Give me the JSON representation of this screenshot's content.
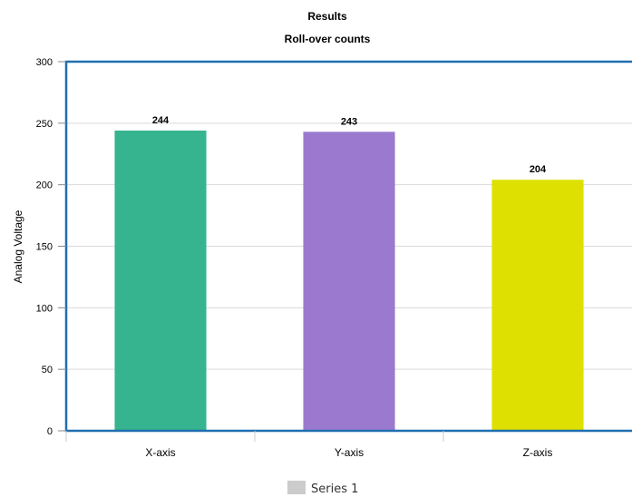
{
  "chart_data": {
    "type": "bar",
    "title": "Results",
    "subtitle": "Roll-over counts",
    "xlabel": "",
    "ylabel": "Analog Voltage",
    "ylim": [
      0,
      300
    ],
    "yticks": [
      0,
      50,
      100,
      150,
      200,
      250,
      300
    ],
    "categories": [
      "X-axis",
      "Y-axis",
      "Z-axis"
    ],
    "series": [
      {
        "name": "Series 1",
        "values": [
          244,
          243,
          204
        ]
      }
    ],
    "bar_colors": [
      "#36b38f",
      "#9b79cf",
      "#dde000"
    ],
    "legend_color": "#cccccc",
    "frame_color": "#1f6fb0",
    "grid": true,
    "legend_position": "bottom-center"
  }
}
